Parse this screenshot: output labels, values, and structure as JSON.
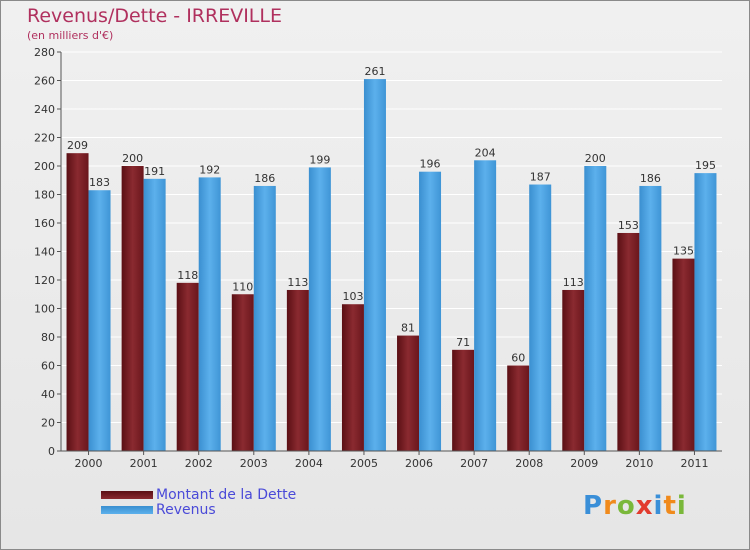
{
  "title": "Revenus/Dette - IRREVILLE",
  "subtitle": "(en milliers d'€)",
  "logo": {
    "letters": [
      "P",
      "r",
      "o",
      "x",
      "i",
      "t",
      "i"
    ],
    "colors": [
      "#3a8fd8",
      "#f08a1c",
      "#7ab83a",
      "#e23b2e",
      "#3a8fd8",
      "#f08a1c",
      "#7ab83a"
    ]
  },
  "colors": {
    "dette": "#7a1e24",
    "revenus": "#4aa3e3"
  },
  "chart_data": {
    "type": "bar",
    "categories": [
      "2000",
      "2001",
      "2002",
      "2003",
      "2004",
      "2005",
      "2006",
      "2007",
      "2008",
      "2009",
      "2010",
      "2011"
    ],
    "series": [
      {
        "name": "Montant de la Dette",
        "values": [
          209,
          200,
          118,
          110,
          113,
          103,
          81,
          71,
          60,
          113,
          153,
          135
        ]
      },
      {
        "name": "Revenus",
        "values": [
          183,
          191,
          192,
          186,
          199,
          261,
          196,
          204,
          187,
          200,
          186,
          195
        ]
      }
    ],
    "yticks": [
      0,
      20,
      40,
      60,
      80,
      100,
      120,
      140,
      160,
      180,
      200,
      220,
      240,
      260,
      280
    ],
    "ylim": [
      0,
      280
    ],
    "grid": true,
    "legend": "bottom-left"
  }
}
